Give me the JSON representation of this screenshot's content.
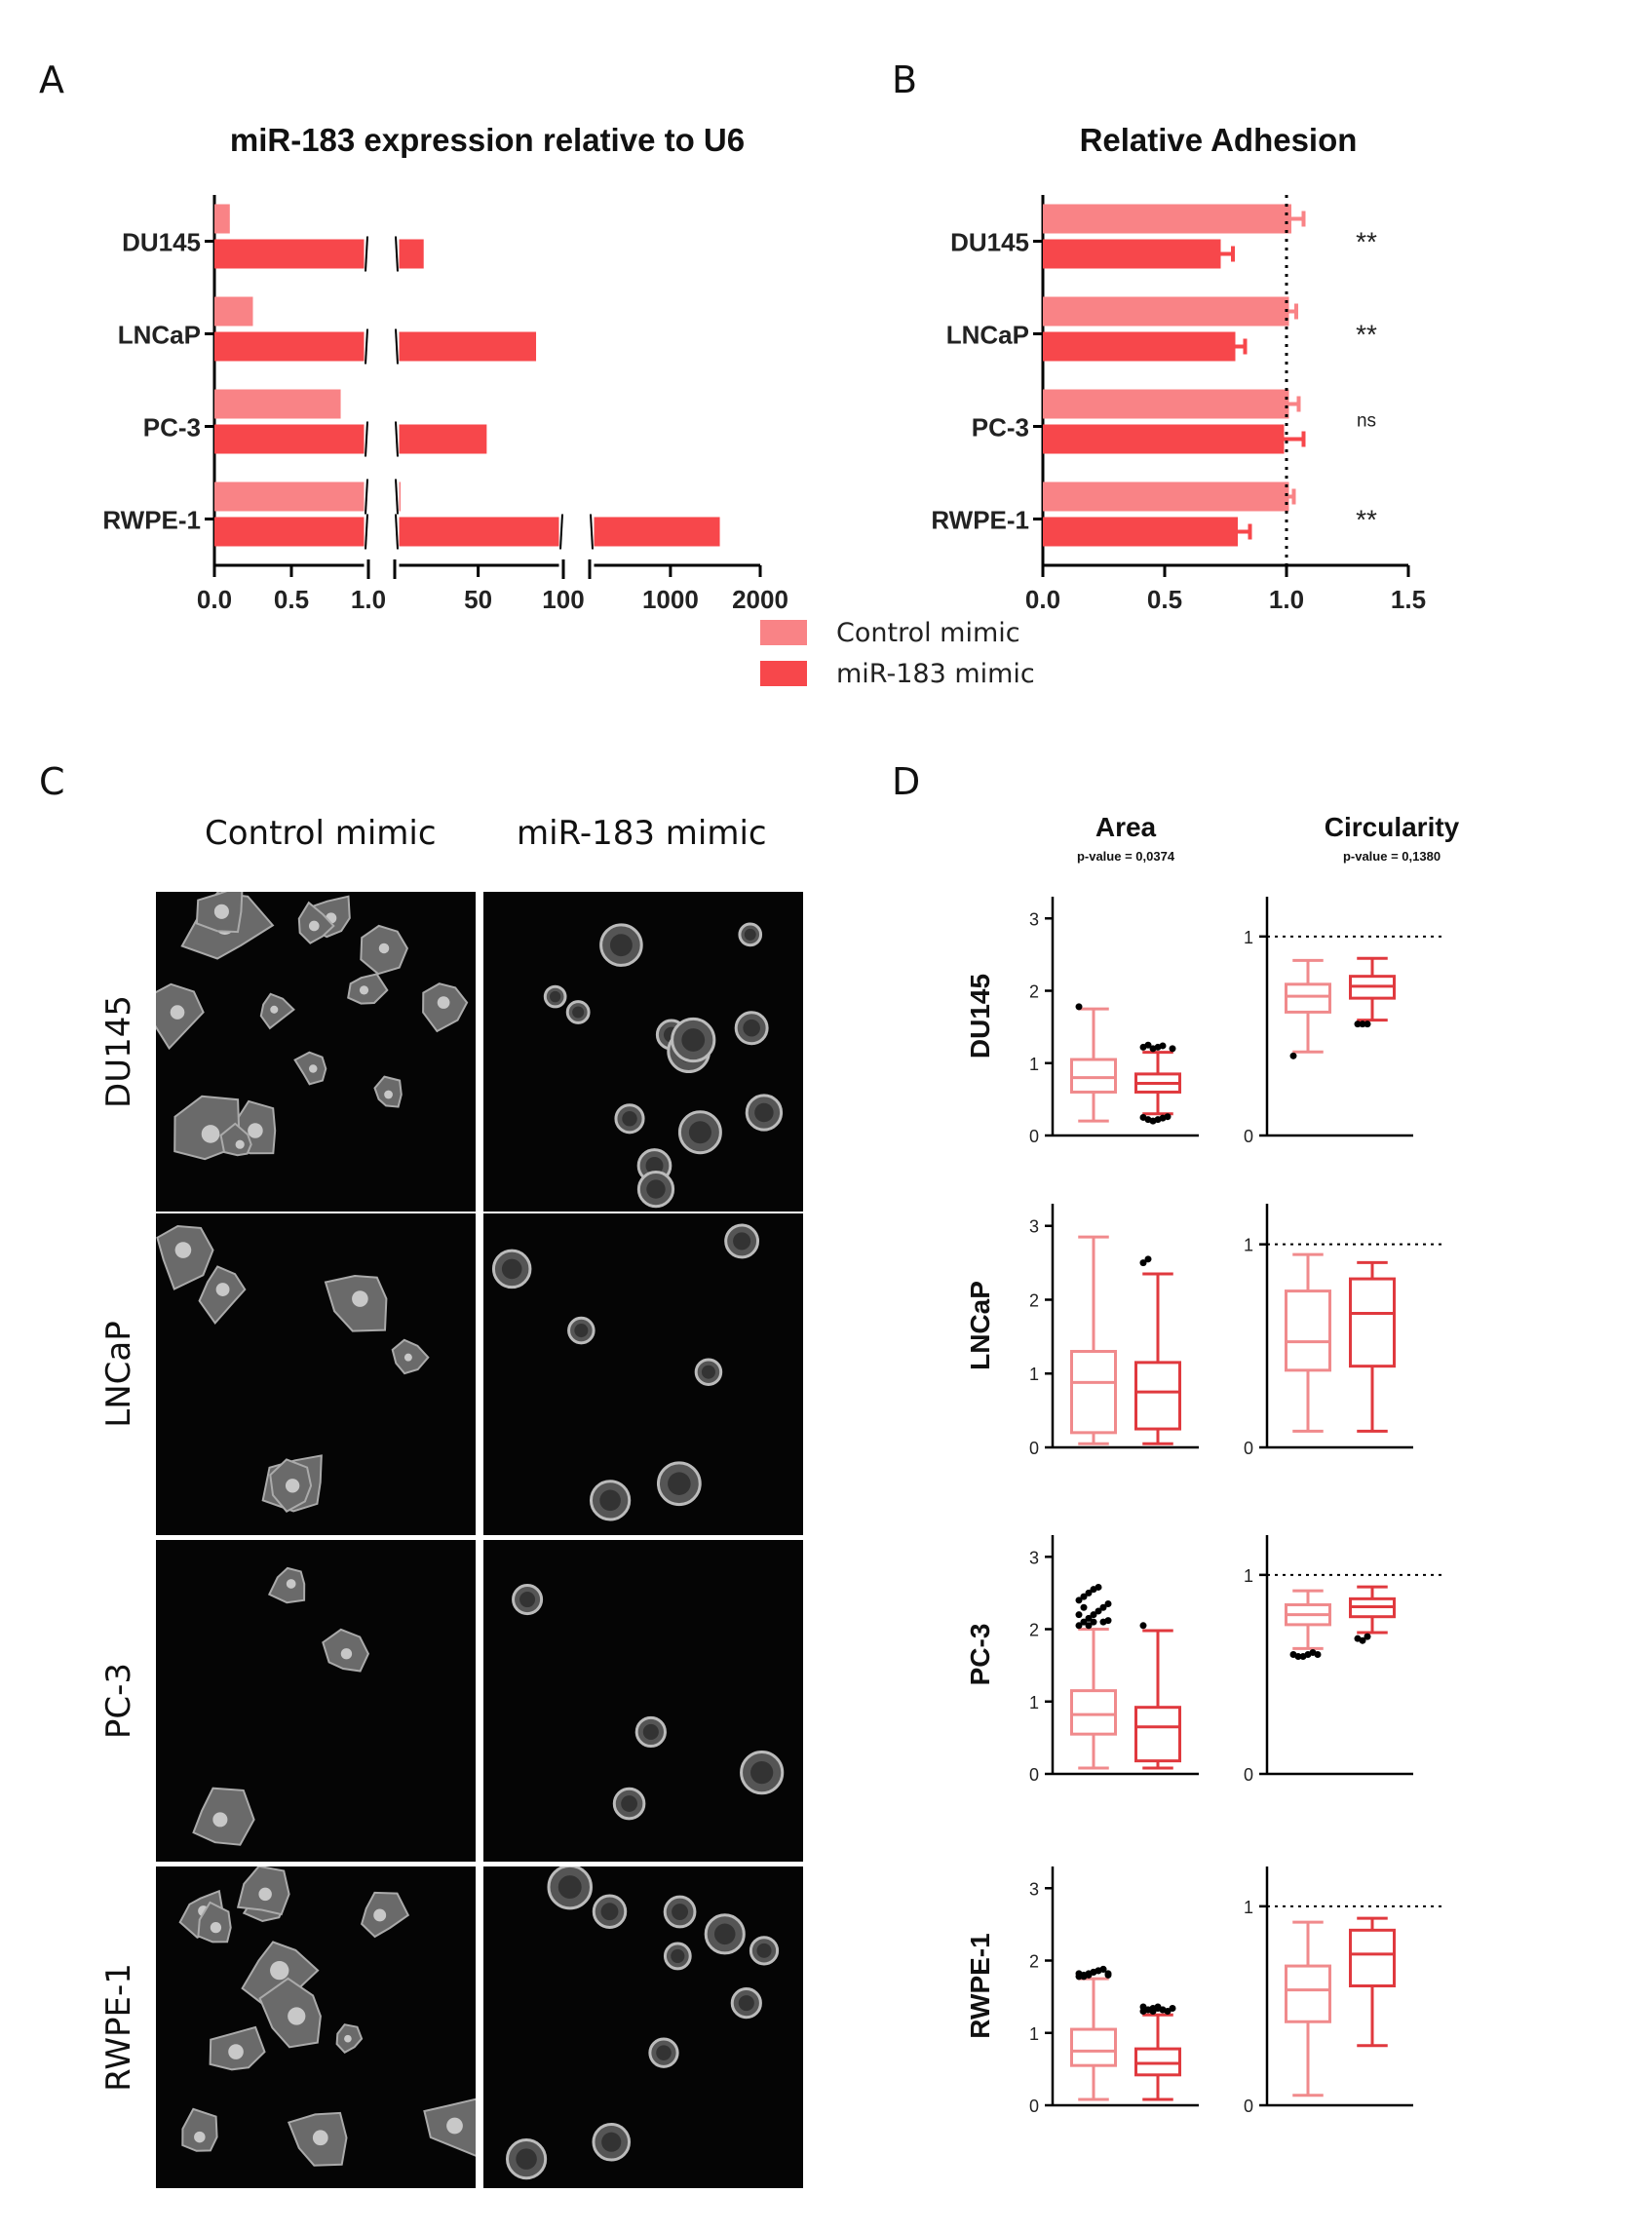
{
  "panels": {
    "a": "A",
    "b": "B",
    "c": "C",
    "d": "D"
  },
  "legend": {
    "items": [
      {
        "label": "Control mimic",
        "color": "#f98386"
      },
      {
        "label": "miR-183 mimic",
        "color": "#f7474b"
      }
    ]
  },
  "colors": {
    "control_bar": "#f98386",
    "mir183_bar": "#f7474b",
    "control_box": "#f08a8c",
    "mir183_box": "#e0393e"
  },
  "chart_data": [
    {
      "id": "A",
      "type": "bar",
      "orientation": "horizontal",
      "title": "miR-183 expression relative to U6",
      "categories": [
        "DU145",
        "LNCaP",
        "PC-3",
        "RWPE-1"
      ],
      "axis": {
        "scale": "segmented",
        "segments": [
          [
            0,
            1
          ],
          [
            1,
            100
          ],
          [
            100,
            2000
          ]
        ],
        "ticks": [
          {
            "value": 0,
            "label": "0.0"
          },
          {
            "value": 0.5,
            "label": "0.5"
          },
          {
            "value": 1,
            "label": "1.0"
          },
          {
            "value": 50,
            "label": "50"
          },
          {
            "value": 100,
            "label": "100"
          },
          {
            "value": 1000,
            "label": "1000"
          },
          {
            "value": 2000,
            "label": "2000"
          }
        ]
      },
      "series": [
        {
          "name": "Control mimic",
          "values": [
            0.1,
            0.25,
            0.82,
            4.5
          ]
        },
        {
          "name": "miR-183 mimic",
          "values": [
            18,
            84,
            55,
            1550
          ]
        }
      ]
    },
    {
      "id": "B",
      "type": "bar",
      "orientation": "horizontal",
      "title": "Relative Adhesion",
      "categories": [
        "DU145",
        "LNCaP",
        "PC-3",
        "RWPE-1"
      ],
      "xlim": [
        0,
        1.5
      ],
      "ticks": [
        "0.0",
        "0.5",
        "1.0",
        "1.5"
      ],
      "reference_line": 1.0,
      "series": [
        {
          "name": "Control mimic",
          "values": [
            1.02,
            1.01,
            1.01,
            1.01
          ],
          "errors": [
            0.05,
            0.03,
            0.04,
            0.02
          ]
        },
        {
          "name": "miR-183 mimic",
          "values": [
            0.73,
            0.79,
            0.99,
            0.8
          ],
          "errors": [
            0.05,
            0.04,
            0.08,
            0.05
          ]
        }
      ],
      "significance": [
        "**",
        "**",
        "ns",
        "**"
      ]
    },
    {
      "id": "D",
      "type": "box",
      "columns": [
        {
          "key": "area",
          "title": "Area",
          "subtitle": "p-value = 0,0374",
          "ylim": [
            0,
            3.3
          ],
          "ticks": [
            "0",
            "1",
            "2",
            "3"
          ],
          "reference_line": null
        },
        {
          "key": "circularity",
          "title": "Circularity",
          "subtitle": "p-value = 0,1380",
          "ylim": [
            0,
            1.2
          ],
          "ticks": [
            "0",
            "1"
          ],
          "reference_line": 1
        }
      ],
      "rows": [
        {
          "label": "DU145",
          "area": [
            {
              "min": 0.2,
              "q1": 0.6,
              "median": 0.8,
              "q3": 1.05,
              "max": 1.75,
              "outliers": [
                1.78
              ]
            },
            {
              "min": 0.3,
              "q1": 0.6,
              "median": 0.72,
              "q3": 0.85,
              "max": 1.15,
              "outliers": [
                0.25,
                0.22,
                0.2,
                0.22,
                0.24,
                0.26,
                1.2,
                1.22,
                1.25,
                1.2,
                1.22,
                1.24
              ]
            }
          ],
          "circularity": [
            {
              "min": 0.42,
              "q1": 0.62,
              "median": 0.7,
              "q3": 0.76,
              "max": 0.88,
              "outliers": [
                0.4
              ]
            },
            {
              "min": 0.58,
              "q1": 0.69,
              "median": 0.75,
              "q3": 0.8,
              "max": 0.89,
              "outliers": [
                0.56,
                0.56,
                0.56
              ]
            }
          ]
        },
        {
          "label": "LNCaP",
          "area": [
            {
              "min": 0.05,
              "q1": 0.2,
              "median": 0.88,
              "q3": 1.3,
              "max": 2.85,
              "outliers": []
            },
            {
              "min": 0.05,
              "q1": 0.25,
              "median": 0.75,
              "q3": 1.15,
              "max": 2.35,
              "outliers": [
                2.5,
                2.55
              ]
            }
          ],
          "circularity": [
            {
              "min": 0.08,
              "q1": 0.38,
              "median": 0.52,
              "q3": 0.77,
              "max": 0.95,
              "outliers": []
            },
            {
              "min": 0.08,
              "q1": 0.4,
              "median": 0.66,
              "q3": 0.83,
              "max": 0.91,
              "outliers": []
            }
          ]
        },
        {
          "label": "PC-3",
          "area": [
            {
              "min": 0.08,
              "q1": 0.55,
              "median": 0.82,
              "q3": 1.15,
              "max": 2.0,
              "outliers": [
                2.05,
                2.1,
                2.15,
                2.2,
                2.25,
                2.3,
                2.35,
                2.4,
                2.45,
                2.5,
                2.55,
                2.58,
                2.1,
                2.12,
                2.2,
                2.3,
                2.05,
                2.1
              ]
            },
            {
              "min": 0.08,
              "q1": 0.18,
              "median": 0.65,
              "q3": 0.92,
              "max": 1.98,
              "outliers": [
                2.05
              ]
            }
          ],
          "circularity": [
            {
              "min": 0.63,
              "q1": 0.75,
              "median": 0.8,
              "q3": 0.85,
              "max": 0.92,
              "outliers": [
                0.6,
                0.59,
                0.59,
                0.6,
                0.61,
                0.6
              ]
            },
            {
              "min": 0.71,
              "q1": 0.79,
              "median": 0.84,
              "q3": 0.88,
              "max": 0.94,
              "outliers": [
                0.68,
                0.67,
                0.69
              ]
            }
          ]
        },
        {
          "label": "RWPE-1",
          "area": [
            {
              "min": 0.08,
              "q1": 0.55,
              "median": 0.75,
              "q3": 1.05,
              "max": 1.75,
              "outliers": [
                1.78,
                1.8,
                1.82,
                1.84,
                1.86,
                1.88,
                1.8,
                1.82,
                1.78,
                1.8,
                1.84,
                1.86,
                1.88,
                1.82
              ]
            },
            {
              "min": 0.08,
              "q1": 0.42,
              "median": 0.58,
              "q3": 0.78,
              "max": 1.25,
              "outliers": [
                1.3,
                1.32,
                1.34,
                1.36,
                1.32,
                1.3,
                1.34,
                1.36,
                1.32,
                1.3,
                1.34,
                1.32
              ]
            }
          ],
          "circularity": [
            {
              "min": 0.05,
              "q1": 0.42,
              "median": 0.58,
              "q3": 0.7,
              "max": 0.92,
              "outliers": []
            },
            {
              "min": 0.3,
              "q1": 0.6,
              "median": 0.76,
              "q3": 0.88,
              "max": 0.94,
              "outliers": []
            }
          ]
        }
      ]
    }
  ],
  "micrographs": {
    "columns": [
      "Control mimic",
      "miR-183 mimic"
    ],
    "rows": [
      "DU145",
      "LNCaP",
      "PC-3",
      "RWPE-1"
    ]
  }
}
